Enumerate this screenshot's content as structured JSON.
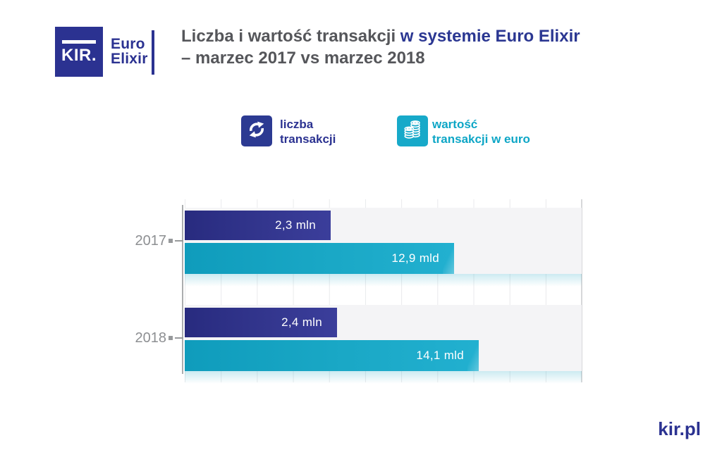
{
  "brand": {
    "logo_text": "KIR.",
    "product_line1": "Euro",
    "product_line2": "Elixir"
  },
  "title": {
    "line1_gray": "Liczba i wartość transakcji ",
    "line1_accent": "w systemie Euro Elixir",
    "line2": "– marzec 2017 vs marzec 2018"
  },
  "legend": [
    {
      "icon": "transfer-arrows-icon",
      "line1": "liczba",
      "line2": "transakcji",
      "color": "#2b3291"
    },
    {
      "icon": "coins-icon",
      "line1": "wartość",
      "line2": "transakcji w euro",
      "color": "#17a9c9"
    }
  ],
  "chart_data": {
    "type": "bar",
    "orientation": "horizontal",
    "title": "Liczba i wartość transakcji w systemie Euro Elixir – marzec 2017 vs marzec 2018",
    "categories": [
      "2017",
      "2018"
    ],
    "series": [
      {
        "name": "liczba transakcji",
        "unit": "mln",
        "color": "#2e3192",
        "values": [
          2.3,
          2.4
        ],
        "labels": [
          "2,3 mln",
          "2,4 mln"
        ]
      },
      {
        "name": "wartość transakcji w euro",
        "unit": "mld euro",
        "color": "#1aa8c6",
        "values": [
          12.9,
          14.1
        ],
        "labels": [
          "12,9 mld",
          "14,1 mld"
        ]
      }
    ],
    "grid": true,
    "value_labels": "inside-end",
    "legend_position": "top"
  },
  "footer": {
    "website": "kir.pl"
  },
  "colors": {
    "accent_blue": "#2b3291",
    "accent_teal": "#17a9c9",
    "title_gray": "#55565a",
    "band_gray": "#f4f4f6",
    "axis_gray": "#abadaf"
  }
}
